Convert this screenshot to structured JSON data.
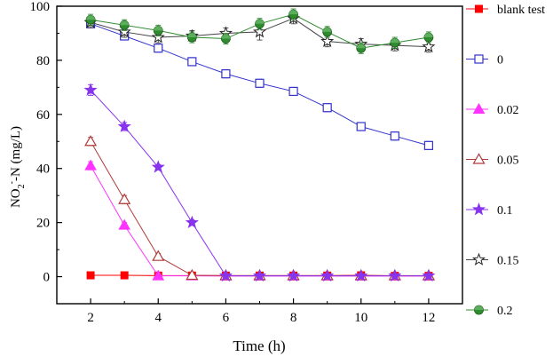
{
  "chart_data": {
    "type": "line",
    "xlabel": "Time (h)",
    "ylabel": {
      "main": "NO",
      "sub": "2",
      "sup": "-",
      "rest": "-N (mg/L)"
    },
    "xlim": [
      1,
      13
    ],
    "ylim": [
      -10,
      100
    ],
    "xticks": [
      2,
      4,
      6,
      8,
      10,
      12
    ],
    "yticks": [
      0,
      20,
      40,
      60,
      80,
      100
    ],
    "grid": false,
    "legend_position": "right",
    "series": [
      {
        "name": "blank test",
        "color": "#ff0000",
        "marker": "square-filled",
        "x": [
          2,
          3,
          4,
          5,
          6,
          7,
          8,
          9,
          10,
          11,
          12
        ],
        "y": [
          0.5,
          0.5,
          0.4,
          0.4,
          0.4,
          0.4,
          0.4,
          0.4,
          0.5,
          0.3,
          0.3
        ]
      },
      {
        "name": "0",
        "color": "#3333cc",
        "marker": "square-open",
        "x": [
          2,
          3,
          4,
          5,
          6,
          7,
          8,
          9,
          10,
          11,
          12
        ],
        "y": [
          93.5,
          89,
          84.5,
          79.5,
          75,
          71.5,
          68.5,
          62.5,
          55.5,
          52,
          48.5
        ],
        "err": [
          1.5,
          1.5,
          1.5,
          1.5,
          1.5,
          1.5,
          1.5,
          1.5,
          1.5,
          1.5,
          1.5
        ]
      },
      {
        "name": "0.02",
        "color": "#ff33ff",
        "marker": "triangle-filled",
        "x": [
          2,
          3,
          4,
          5,
          6,
          7,
          8,
          9,
          10,
          11,
          12
        ],
        "y": [
          41,
          19,
          0.3,
          0.3,
          0.2,
          0.2,
          0.2,
          0.2,
          0.2,
          0.2,
          0.2
        ],
        "err": [
          1.5,
          1,
          0.5,
          0.5,
          0.5,
          0.5,
          0.5,
          0.5,
          0.5,
          0.5,
          0.5
        ]
      },
      {
        "name": "0.05",
        "color": "#b03a3a",
        "marker": "triangle-open",
        "x": [
          2,
          3,
          4,
          5,
          6,
          7,
          8,
          9,
          10,
          11,
          12
        ],
        "y": [
          50,
          28.5,
          7.5,
          0.5,
          0.4,
          0.4,
          0.4,
          0.4,
          0.4,
          0.4,
          0.4
        ],
        "err": [
          1.5,
          1.5,
          1,
          0.5,
          0.5,
          0.5,
          0.5,
          0.5,
          0.5,
          0.5,
          0.5
        ]
      },
      {
        "name": "0.1",
        "color": "#8833ee",
        "marker": "star-filled",
        "x": [
          2,
          3,
          4,
          5,
          6,
          7,
          8,
          9,
          10,
          11,
          12
        ],
        "y": [
          69,
          55.5,
          40.5,
          20,
          0.3,
          0.3,
          0.3,
          0.3,
          0.3,
          0.3,
          0.3
        ],
        "err": [
          2,
          1.5,
          1,
          1,
          0.5,
          0.5,
          0.5,
          0.5,
          0.5,
          0.5,
          0.5
        ]
      },
      {
        "name": "0.15",
        "color": "#444444",
        "marker": "star-open",
        "x": [
          2,
          3,
          4,
          5,
          6,
          7,
          8,
          9,
          10,
          11,
          12
        ],
        "y": [
          94,
          90.5,
          88.5,
          89,
          90,
          90.5,
          95.5,
          87,
          86,
          85.5,
          85
        ],
        "err": [
          2,
          2,
          2,
          2,
          2,
          3,
          2,
          2,
          2,
          2,
          2
        ]
      },
      {
        "name": "0.2",
        "color": "#2e8b2e",
        "marker": "circle-filled",
        "x": [
          2,
          3,
          4,
          5,
          6,
          7,
          8,
          9,
          10,
          11,
          12
        ],
        "y": [
          95,
          93,
          91,
          88.5,
          88,
          93.5,
          97,
          90.5,
          84.5,
          86.5,
          88.5
        ],
        "err": [
          2,
          2,
          2,
          2,
          2,
          2,
          2,
          2,
          2,
          2,
          2
        ]
      }
    ]
  }
}
